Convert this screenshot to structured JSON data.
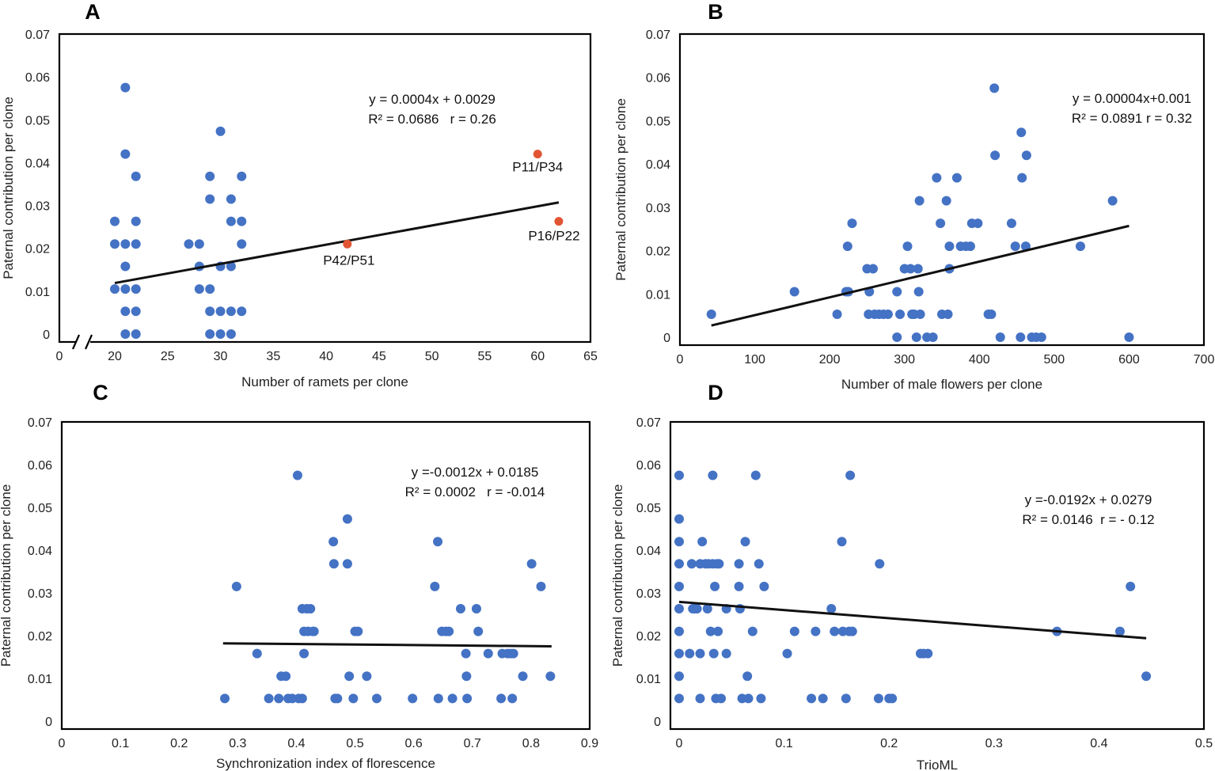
{
  "colors": {
    "point": "#4472C4",
    "highlight": "#E15534",
    "line": "#111111"
  },
  "chart_data": [
    {
      "type": "scatter",
      "panel": "A",
      "xlabel": "Number of ramets per clone",
      "ylabel": "Paternal contribution per clone",
      "xlim": [
        0,
        65
      ],
      "ylim": [
        0,
        0.07
      ],
      "xticks": [
        0,
        20,
        25,
        30,
        35,
        40,
        45,
        50,
        55,
        60,
        65
      ],
      "yticks": [
        "0",
        "0.01",
        "0.02",
        "0.03",
        "0.04",
        "0.05",
        "0.06",
        "0.07"
      ],
      "axis_break": true,
      "equation": "y = 0.0004x + 0.0029",
      "stats": "R² = 0.0686   r = 0.26",
      "trendline": {
        "x1": 20,
        "y1": 0.0119,
        "x2": 62,
        "y2": 0.0307
      },
      "points": [
        [
          21,
          0.0575
        ],
        [
          21,
          0.042
        ],
        [
          21,
          0.021
        ],
        [
          21,
          0.0158
        ],
        [
          21,
          0.0105
        ],
        [
          21,
          0.0053
        ],
        [
          21,
          0
        ],
        [
          20,
          0.0263
        ],
        [
          20,
          0.021
        ],
        [
          20,
          0.0105
        ],
        [
          22,
          0.0368
        ],
        [
          22,
          0.0263
        ],
        [
          22,
          0.021
        ],
        [
          22,
          0.0105
        ],
        [
          22,
          0.0053
        ],
        [
          22,
          0
        ],
        [
          30,
          0.0473
        ],
        [
          29,
          0.0368
        ],
        [
          29,
          0.0315
        ],
        [
          29,
          0.0053
        ],
        [
          29,
          0
        ],
        [
          29,
          0.0105
        ],
        [
          27,
          0.021
        ],
        [
          28,
          0.021
        ],
        [
          28,
          0.0158
        ],
        [
          28,
          0.0105
        ],
        [
          30,
          0.0158
        ],
        [
          30,
          0.0053
        ],
        [
          30,
          0
        ],
        [
          31,
          0.0315
        ],
        [
          31,
          0.0263
        ],
        [
          31,
          0.0158
        ],
        [
          31,
          0.0053
        ],
        [
          31,
          0
        ],
        [
          32,
          0.0368
        ],
        [
          32,
          0.0263
        ],
        [
          32,
          0.021
        ],
        [
          32,
          0.0053
        ]
      ],
      "highlights": [
        {
          "label": "P11/P34",
          "x": 60,
          "y": 0.042
        },
        {
          "label": "P16/P22",
          "x": 62,
          "y": 0.0263
        },
        {
          "label": "P42/P51",
          "x": 42,
          "y": 0.021
        }
      ]
    },
    {
      "type": "scatter",
      "panel": "B",
      "xlabel": "Number of male flowers per clone",
      "ylabel": "Paternal contribution per clone",
      "xlim": [
        0,
        700
      ],
      "ylim": [
        0,
        0.07
      ],
      "xticks": [
        0,
        100,
        200,
        300,
        400,
        500,
        600,
        700
      ],
      "yticks": [
        "0",
        "0.01",
        "0.02",
        "0.03",
        "0.04",
        "0.05",
        "0.06",
        "0.07"
      ],
      "equation": "y = 0.00004x+0.001",
      "stats": "R² = 0.0891 r = 0.32",
      "trendline": {
        "x1": 42,
        "y1": 0.0027,
        "x2": 600,
        "y2": 0.0257
      },
      "points": [
        [
          42,
          0.0053
        ],
        [
          153,
          0.0105
        ],
        [
          210,
          0.0053
        ],
        [
          222,
          0.0105
        ],
        [
          225,
          0.0105
        ],
        [
          224,
          0.021
        ],
        [
          230,
          0.0263
        ],
        [
          250,
          0.0158
        ],
        [
          258,
          0.0158
        ],
        [
          253,
          0.0105
        ],
        [
          252,
          0.0053
        ],
        [
          260,
          0.0053
        ],
        [
          266,
          0.0053
        ],
        [
          272,
          0.0053
        ],
        [
          278,
          0.0053
        ],
        [
          290,
          0.0105
        ],
        [
          290,
          0
        ],
        [
          294,
          0.0053
        ],
        [
          300,
          0.0158
        ],
        [
          304,
          0.021
        ],
        [
          308,
          0.0158
        ],
        [
          310,
          0.0053
        ],
        [
          313,
          0.0053
        ],
        [
          316,
          0
        ],
        [
          318,
          0.0158
        ],
        [
          319,
          0.0105
        ],
        [
          320,
          0.0315
        ],
        [
          321,
          0.0053
        ],
        [
          330,
          0
        ],
        [
          338,
          0
        ],
        [
          343,
          0.0368
        ],
        [
          348,
          0.0263
        ],
        [
          350,
          0.0053
        ],
        [
          356,
          0.0315
        ],
        [
          358,
          0.0053
        ],
        [
          360,
          0.0158
        ],
        [
          360,
          0.021
        ],
        [
          370,
          0.0368
        ],
        [
          375,
          0.021
        ],
        [
          382,
          0.021
        ],
        [
          388,
          0.021
        ],
        [
          390,
          0.0263
        ],
        [
          398,
          0.0263
        ],
        [
          412,
          0.0053
        ],
        [
          416,
          0.0053
        ],
        [
          420,
          0.0575
        ],
        [
          421,
          0.042
        ],
        [
          428,
          0
        ],
        [
          443,
          0.0263
        ],
        [
          448,
          0.021
        ],
        [
          455,
          0
        ],
        [
          456,
          0.0473
        ],
        [
          457,
          0.0368
        ],
        [
          462,
          0.021
        ],
        [
          463,
          0.042
        ],
        [
          470,
          0
        ],
        [
          476,
          0
        ],
        [
          483,
          0
        ],
        [
          535,
          0.021
        ],
        [
          578,
          0.0315
        ],
        [
          600,
          0
        ]
      ]
    },
    {
      "type": "scatter",
      "panel": "C",
      "xlabel": "Synchronization index of florescence",
      "ylabel": "Paternal contribution per clone",
      "xlim": [
        0,
        0.9
      ],
      "ylim": [
        0,
        0.07
      ],
      "xticks": [
        "0",
        "0.1",
        "0.2",
        "0.3",
        "0.4",
        "0.5",
        "0.6",
        "0.7",
        "0.8",
        "0.9"
      ],
      "yticks": [
        "0",
        "0.01",
        "0.02",
        "0.03",
        "0.04",
        "0.05",
        "0.06",
        "0.07"
      ],
      "equation": "y =-0.0012x + 0.0185",
      "stats": "R² = 0.0002   r = -0.014",
      "trendline": {
        "x1": 0.275,
        "y1": 0.0182,
        "x2": 0.835,
        "y2": 0.0175
      },
      "points": [
        [
          0.278,
          0.0053
        ],
        [
          0.298,
          0.0315
        ],
        [
          0.333,
          0.0158
        ],
        [
          0.353,
          0.0053
        ],
        [
          0.37,
          0.0053
        ],
        [
          0.374,
          0.0105
        ],
        [
          0.382,
          0.0105
        ],
        [
          0.386,
          0.0053
        ],
        [
          0.393,
          0.0053
        ],
        [
          0.402,
          0.0575
        ],
        [
          0.404,
          0.0053
        ],
        [
          0.41,
          0.0263
        ],
        [
          0.41,
          0.0053
        ],
        [
          0.413,
          0.0158
        ],
        [
          0.413,
          0.021
        ],
        [
          0.418,
          0.0263
        ],
        [
          0.42,
          0.021
        ],
        [
          0.424,
          0.0263
        ],
        [
          0.428,
          0.021
        ],
        [
          0.43,
          0.021
        ],
        [
          0.463,
          0.042
        ],
        [
          0.464,
          0.0368
        ],
        [
          0.466,
          0.0053
        ],
        [
          0.47,
          0.0053
        ],
        [
          0.487,
          0.0473
        ],
        [
          0.487,
          0.0368
        ],
        [
          0.49,
          0.0105
        ],
        [
          0.497,
          0.0053
        ],
        [
          0.5,
          0.021
        ],
        [
          0.505,
          0.021
        ],
        [
          0.52,
          0.0105
        ],
        [
          0.537,
          0.0053
        ],
        [
          0.598,
          0.0053
        ],
        [
          0.636,
          0.0315
        ],
        [
          0.641,
          0.042
        ],
        [
          0.642,
          0.0053
        ],
        [
          0.648,
          0.021
        ],
        [
          0.655,
          0.021
        ],
        [
          0.66,
          0.021
        ],
        [
          0.666,
          0.0053
        ],
        [
          0.68,
          0.0263
        ],
        [
          0.689,
          0.0158
        ],
        [
          0.69,
          0.0105
        ],
        [
          0.691,
          0.0053
        ],
        [
          0.707,
          0.0263
        ],
        [
          0.71,
          0.021
        ],
        [
          0.727,
          0.0158
        ],
        [
          0.749,
          0.0053
        ],
        [
          0.751,
          0.0158
        ],
        [
          0.76,
          0.0158
        ],
        [
          0.765,
          0.0158
        ],
        [
          0.768,
          0.0053
        ],
        [
          0.77,
          0.0158
        ],
        [
          0.786,
          0.0105
        ],
        [
          0.801,
          0.0368
        ],
        [
          0.817,
          0.0315
        ],
        [
          0.833,
          0.0105
        ]
      ]
    },
    {
      "type": "scatter",
      "panel": "D",
      "xlabel": "TrioML",
      "ylabel": "Paternal contribution per clone",
      "xlim": [
        -0.01,
        0.5
      ],
      "ylim": [
        0,
        0.07
      ],
      "xticks": [
        "0",
        "0.1",
        "0.2",
        "0.3",
        "0.4",
        "0.5"
      ],
      "yticks": [
        "0",
        "0.01",
        "0.02",
        "0.03",
        "0.04",
        "0.05",
        "0.06",
        "0.07"
      ],
      "equation": "y =-0.0192x + 0.0279",
      "stats": "R² = 0.0146  r = - 0.12",
      "trendline": {
        "x1": 0,
        "y1": 0.0279,
        "x2": 0.445,
        "y2": 0.0194
      },
      "points": [
        [
          0,
          0.0575
        ],
        [
          0,
          0.0473
        ],
        [
          0,
          0.042
        ],
        [
          0,
          0.0368
        ],
        [
          0,
          0.0315
        ],
        [
          0,
          0.0263
        ],
        [
          0,
          0.021
        ],
        [
          0,
          0.0158
        ],
        [
          0,
          0.0105
        ],
        [
          0,
          0.0053
        ],
        [
          0.01,
          0.0158
        ],
        [
          0.012,
          0.0368
        ],
        [
          0.013,
          0.0263
        ],
        [
          0.015,
          0.0263
        ],
        [
          0.017,
          0.0263
        ],
        [
          0.02,
          0.0368
        ],
        [
          0.02,
          0.0053
        ],
        [
          0.02,
          0.0158
        ],
        [
          0.022,
          0.042
        ],
        [
          0.025,
          0.0368
        ],
        [
          0.027,
          0.0263
        ],
        [
          0.028,
          0.0368
        ],
        [
          0.03,
          0.021
        ],
        [
          0.032,
          0.0575
        ],
        [
          0.032,
          0.0368
        ],
        [
          0.033,
          0.0158
        ],
        [
          0.034,
          0.0315
        ],
        [
          0.035,
          0.0053
        ],
        [
          0.036,
          0.0368
        ],
        [
          0.037,
          0.021
        ],
        [
          0.038,
          0.0368
        ],
        [
          0.04,
          0.0053
        ],
        [
          0.045,
          0.0263
        ],
        [
          0.045,
          0.0158
        ],
        [
          0.057,
          0.0368
        ],
        [
          0.057,
          0.0315
        ],
        [
          0.058,
          0.0263
        ],
        [
          0.06,
          0.0053
        ],
        [
          0.063,
          0.042
        ],
        [
          0.065,
          0.0105
        ],
        [
          0.066,
          0.0053
        ],
        [
          0.07,
          0.021
        ],
        [
          0.073,
          0.0575
        ],
        [
          0.076,
          0.0368
        ],
        [
          0.078,
          0.0053
        ],
        [
          0.081,
          0.0315
        ],
        [
          0.103,
          0.0158
        ],
        [
          0.11,
          0.021
        ],
        [
          0.126,
          0.0053
        ],
        [
          0.13,
          0.021
        ],
        [
          0.137,
          0.0053
        ],
        [
          0.145,
          0.0263
        ],
        [
          0.148,
          0.021
        ],
        [
          0.155,
          0.042
        ],
        [
          0.156,
          0.021
        ],
        [
          0.159,
          0.0053
        ],
        [
          0.162,
          0.021
        ],
        [
          0.163,
          0.0575
        ],
        [
          0.165,
          0.021
        ],
        [
          0.19,
          0.0053
        ],
        [
          0.191,
          0.0368
        ],
        [
          0.2,
          0.0053
        ],
        [
          0.203,
          0.0053
        ],
        [
          0.23,
          0.0158
        ],
        [
          0.233,
          0.0158
        ],
        [
          0.237,
          0.0158
        ],
        [
          0.36,
          0.021
        ],
        [
          0.42,
          0.021
        ],
        [
          0.43,
          0.0315
        ],
        [
          0.445,
          0.0105
        ]
      ]
    }
  ]
}
